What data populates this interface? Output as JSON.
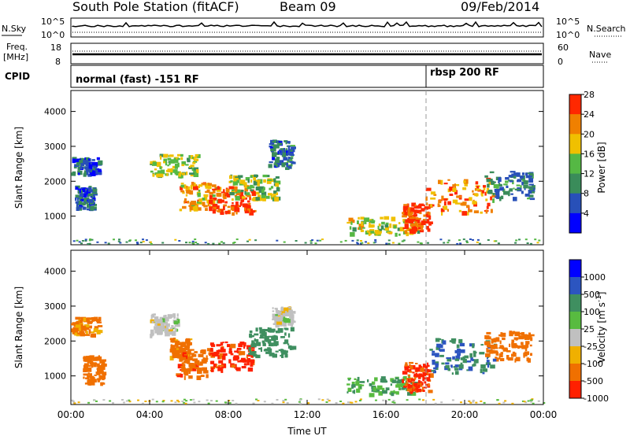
{
  "header": {
    "station": "South Pole Station (fitACF)",
    "beam": "Beam 09",
    "date": "09/Feb/2014"
  },
  "panels": {
    "nsky": {
      "label": "N.Sky",
      "tick_top": "10^5",
      "tick_bottom": "10^0",
      "right_label": "N.Search",
      "right_tick_top": "10^5",
      "right_tick_bottom": "10^0"
    },
    "freq": {
      "label_line1": "Freq.",
      "label_line2": "[MHz]",
      "tick_top": "18",
      "tick_bottom": "8",
      "right_label": "Nave",
      "right_tick_top": "60",
      "right_tick_bottom": "0"
    },
    "cpid": {
      "label": "CPID",
      "segment1": "normal (fast) -151 RF",
      "segment2": "rbsp 200 RF"
    }
  },
  "chart_data": [
    {
      "type": "heatmap",
      "title": "",
      "xlabel": "",
      "ylabel": "Slant Range [km]",
      "xlim": [
        "00:00",
        "24:00"
      ],
      "ylim": [
        180,
        4600
      ],
      "y_ticks": [
        1000,
        2000,
        3000,
        4000
      ],
      "colorbar_label": "Power [dB]",
      "colorbar_ticks": [
        4,
        8,
        12,
        16,
        20,
        24,
        28
      ],
      "colorbar_colors": [
        "#0000ff",
        "#2850b8",
        "#3a8c5a",
        "#55b844",
        "#f0c000",
        "#f08000",
        "#ff2800"
      ],
      "regions": [
        {
          "t": [
            0.0,
            1.4
          ],
          "r": [
            2200,
            2700
          ],
          "v": 6
        },
        {
          "t": [
            0.2,
            1.2
          ],
          "r": [
            1200,
            1900
          ],
          "v": 7
        },
        {
          "t": [
            4.0,
            6.4
          ],
          "r": [
            2200,
            2800
          ],
          "v": 15
        },
        {
          "t": [
            5.5,
            7.5
          ],
          "r": [
            1200,
            2000
          ],
          "v": 20
        },
        {
          "t": [
            7.0,
            9.2
          ],
          "r": [
            1100,
            1900
          ],
          "v": 25
        },
        {
          "t": [
            8.0,
            10.5
          ],
          "r": [
            1500,
            2200
          ],
          "v": 14
        },
        {
          "t": [
            10.0,
            11.2
          ],
          "r": [
            2400,
            3200
          ],
          "v": 8
        },
        {
          "t": [
            14.0,
            17.6
          ],
          "r": [
            500,
            1000
          ],
          "v": 16
        },
        {
          "t": [
            16.8,
            18.2
          ],
          "r": [
            600,
            1400
          ],
          "v": 26
        },
        {
          "t": [
            18.0,
            21.5
          ],
          "r": [
            1100,
            2100
          ],
          "v": 22
        },
        {
          "t": [
            21.0,
            23.4
          ],
          "r": [
            1500,
            2300
          ],
          "v": 9
        }
      ]
    },
    {
      "type": "heatmap",
      "title": "",
      "xlabel": "Time UT",
      "ylabel": "Slant Range [km]",
      "xlim": [
        "00:00",
        "24:00"
      ],
      "ylim": [
        180,
        4600
      ],
      "x_ticks": [
        "00:00",
        "04:00",
        "08:00",
        "12:00",
        "16:00",
        "20:00",
        "00:00"
      ],
      "y_ticks": [
        1000,
        2000,
        3000,
        4000
      ],
      "colorbar_label": "Velocity [m s^-1]",
      "colorbar_ticks": [
        "1000",
        "500",
        "100",
        "25",
        "-25",
        "-100",
        "-500",
        "-1000"
      ],
      "colorbar_colors": [
        "#0000ff",
        "#2c55c0",
        "#3f8f60",
        "#58bb40",
        "#c0c0c0",
        "#f0b000",
        "#f07000",
        "#ff2000"
      ],
      "regions": [
        {
          "t": [
            0.0,
            1.4
          ],
          "r": [
            2200,
            2700
          ],
          "v": -120
        },
        {
          "t": [
            0.6,
            1.6
          ],
          "r": [
            800,
            1600
          ],
          "v": -300
        },
        {
          "t": [
            4.0,
            5.4
          ],
          "r": [
            2200,
            2800
          ],
          "v": 0
        },
        {
          "t": [
            5.0,
            6.0
          ],
          "r": [
            1500,
            2100
          ],
          "v": -150
        },
        {
          "t": [
            5.3,
            7.2
          ],
          "r": [
            1000,
            1800
          ],
          "v": -400
        },
        {
          "t": [
            7.0,
            9.2
          ],
          "r": [
            1200,
            2000
          ],
          "v": -700
        },
        {
          "t": [
            9.0,
            11.2
          ],
          "r": [
            1600,
            2400
          ],
          "v": 200
        },
        {
          "t": [
            10.2,
            11.2
          ],
          "r": [
            2500,
            3000
          ],
          "v": 0
        },
        {
          "t": [
            14.0,
            17.6
          ],
          "r": [
            500,
            1000
          ],
          "v": 100
        },
        {
          "t": [
            16.8,
            18.2
          ],
          "r": [
            600,
            1400
          ],
          "v": -600
        },
        {
          "t": [
            18.2,
            21.5
          ],
          "r": [
            1100,
            2100
          ],
          "v": 500
        },
        {
          "t": [
            21.0,
            23.4
          ],
          "r": [
            1500,
            2300
          ],
          "v": -200
        }
      ]
    }
  ]
}
